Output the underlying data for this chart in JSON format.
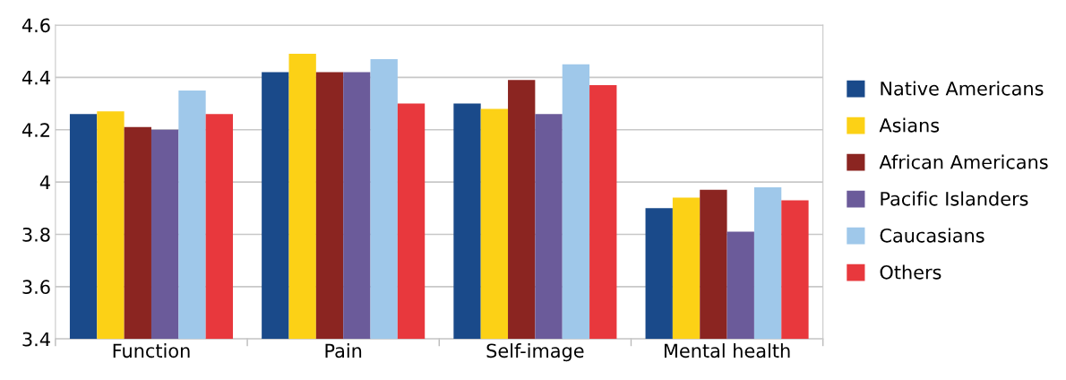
{
  "chart_data": {
    "type": "bar",
    "categories": [
      "Function",
      "Pain",
      "Self-image",
      "Mental health"
    ],
    "series": [
      {
        "name": "Native Americans",
        "color": "#1a4a8a",
        "values": [
          4.26,
          4.42,
          4.3,
          3.9
        ]
      },
      {
        "name": "Asians",
        "color": "#fcd116",
        "values": [
          4.27,
          4.49,
          4.28,
          3.94
        ]
      },
      {
        "name": "African Americans",
        "color": "#8b2521",
        "values": [
          4.21,
          4.42,
          4.39,
          3.97
        ]
      },
      {
        "name": "Pacific Islanders",
        "color": "#6b5b9a",
        "values": [
          4.2,
          4.42,
          4.26,
          3.81
        ]
      },
      {
        "name": "Caucasians",
        "color": "#9fc8ea",
        "values": [
          4.35,
          4.47,
          4.45,
          3.98
        ]
      },
      {
        "name": "Others",
        "color": "#e8383d",
        "values": [
          4.26,
          4.3,
          4.37,
          3.93
        ]
      }
    ],
    "ylim": [
      3.4,
      4.6
    ],
    "yticks": [
      3.4,
      3.6,
      3.8,
      4,
      4.2,
      4.4,
      4.6
    ],
    "grid": "y",
    "legend": "right"
  }
}
